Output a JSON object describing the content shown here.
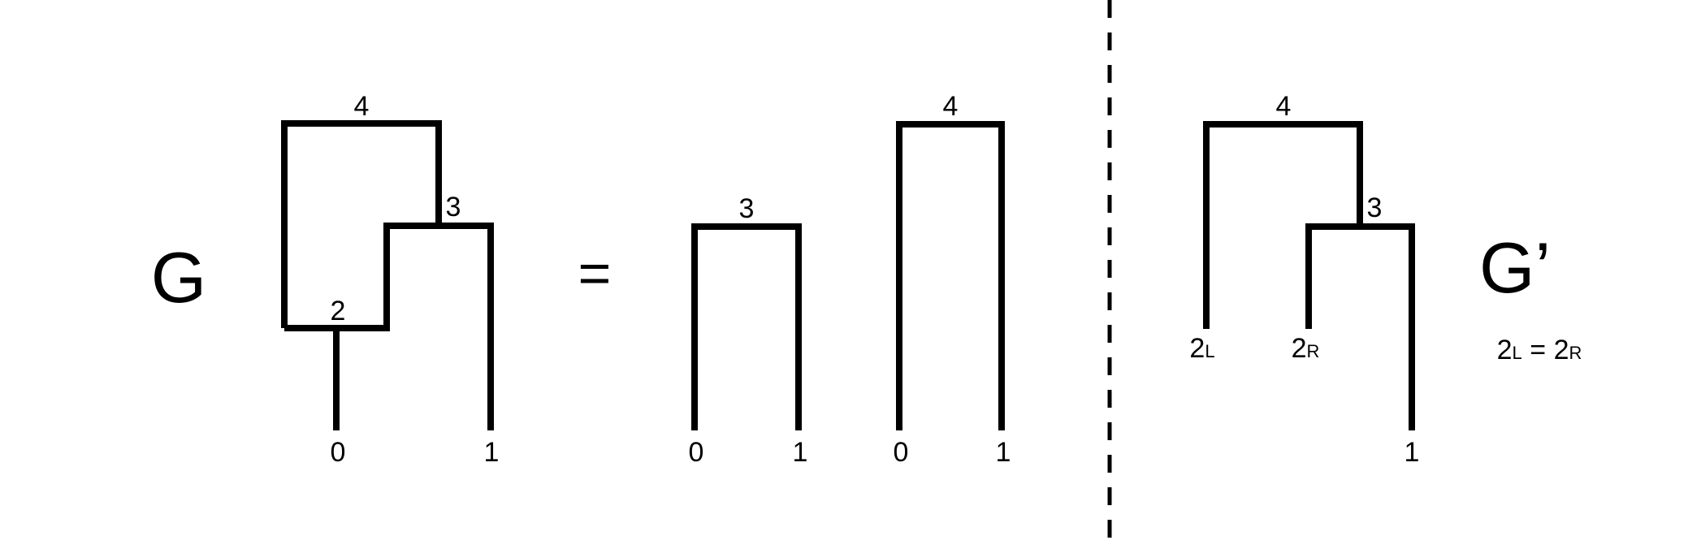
{
  "left": {
    "graph_label": "G",
    "nodes": {
      "n4": "4",
      "n3": "3",
      "n2": "2",
      "leaf0": "0",
      "leaf1": "1"
    }
  },
  "equals": "=",
  "decomposition": {
    "tree3": {
      "root": "3",
      "leaf_left": "0",
      "leaf_right": "1"
    },
    "tree4": {
      "root": "4",
      "leaf_left": "0",
      "leaf_right": "1"
    }
  },
  "right": {
    "graph_label": "G’",
    "nodes": {
      "n4": "4",
      "n3": "3",
      "leaf1": "1"
    },
    "split_left": {
      "base": "2",
      "sub": "L"
    },
    "split_right": {
      "base": "2",
      "sub": "R"
    },
    "equation": {
      "lhs_base": "2",
      "lhs_sub": "L",
      "op": "=",
      "rhs_base": "2",
      "rhs_sub": "R"
    }
  }
}
